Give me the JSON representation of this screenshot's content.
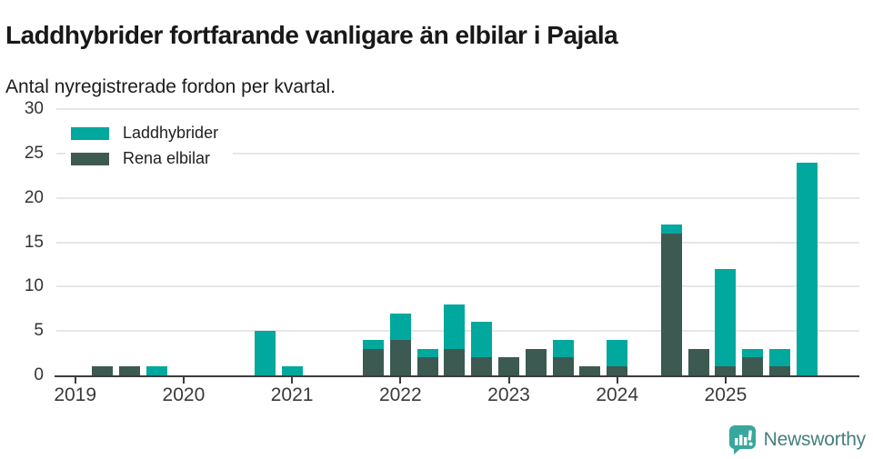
{
  "header": {
    "title": "Laddhybrider fortfarande vanligare än elbilar i Pajala",
    "subtitle": "Antal nyregistrerade fordon per kvartal."
  },
  "colors": {
    "laddhybrider": "#00a89d",
    "rena_elbilar": "#3c5a52",
    "axis": "#3d3d3d",
    "gridline": "#e7e7e7",
    "brand_teal": "#38a79e",
    "brand_text": "#45807d"
  },
  "chart_data": {
    "type": "bar",
    "stacked": true,
    "title": "Laddhybrider fortfarande vanligare än elbilar i Pajala",
    "subtitle": "Antal nyregistrerade fordon per kvartal.",
    "xlabel": "",
    "ylabel": "",
    "ylim": [
      0,
      30
    ],
    "yticks": [
      0,
      5,
      10,
      15,
      20,
      25,
      30
    ],
    "grid": true,
    "legend_position": "top-left",
    "categories": [
      "2019 Q1",
      "2019 Q2",
      "2019 Q3",
      "2019 Q4",
      "2020 Q1",
      "2020 Q2",
      "2020 Q3",
      "2020 Q4",
      "2021 Q1",
      "2021 Q2",
      "2021 Q3",
      "2021 Q4",
      "2022 Q1",
      "2022 Q2",
      "2022 Q3",
      "2022 Q4",
      "2023 Q1",
      "2023 Q2",
      "2023 Q3",
      "2023 Q4",
      "2024 Q1",
      "2024 Q2",
      "2024 Q3",
      "2024 Q4",
      "2025 Q1",
      "2025 Q2",
      "2025 Q3",
      "2025 Q4"
    ],
    "x_year_ticks": [
      "2019",
      "2020",
      "2021",
      "2022",
      "2023",
      "2024",
      "2025"
    ],
    "series": [
      {
        "name": "Laddhybrider",
        "color": "#00a89d",
        "stack_position": "top",
        "values": [
          0,
          0,
          0,
          1,
          0,
          0,
          0,
          5,
          1,
          0,
          0,
          1,
          3,
          1,
          5,
          4,
          0,
          0,
          2,
          0,
          3,
          0,
          1,
          0,
          11,
          1,
          2,
          24
        ]
      },
      {
        "name": "Rena elbilar",
        "color": "#3c5a52",
        "stack_position": "bottom",
        "values": [
          0,
          1,
          1,
          0,
          0,
          0,
          0,
          0,
          0,
          0,
          0,
          3,
          4,
          2,
          3,
          2,
          2,
          3,
          2,
          1,
          1,
          0,
          16,
          3,
          1,
          2,
          1,
          0
        ]
      }
    ]
  },
  "legend": {
    "items": [
      {
        "label": "Laddhybrider",
        "color": "#00a89d"
      },
      {
        "label": "Rena elbilar",
        "color": "#3c5a52"
      }
    ]
  },
  "footer": {
    "brand": "Newsworthy"
  }
}
